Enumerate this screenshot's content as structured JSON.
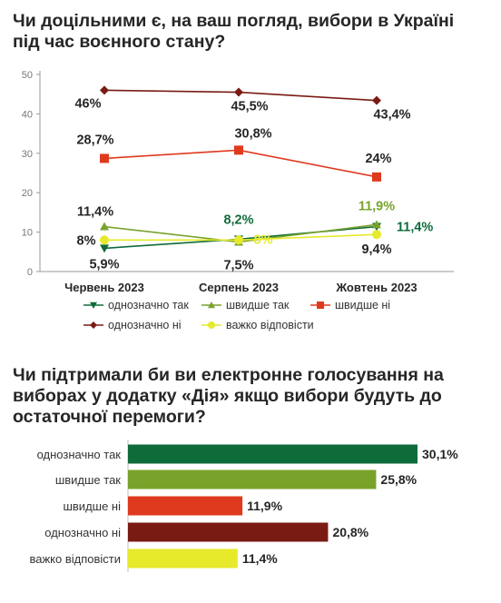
{
  "colors": {
    "definitely_yes": "#0e6b3a",
    "rather_yes": "#79a22b",
    "rather_no": "#df3a1e",
    "definitely_no": "#7a1b13",
    "hard_to_say": "#e6ea2a",
    "axis": "#9a9a9a",
    "grid": "#d9d9d9"
  },
  "titles": {
    "line_chart": "Чи доцільними є, на ваш погляд, вибори в Україні під час воєнного стану?",
    "bar_chart": "Чи підтримали би ви електронне голосування на виборах у додатку «Дія» якщо вибори будуть до остаточної перемоги?"
  },
  "chart_data": [
    {
      "type": "line",
      "title": "Чи доцільними є, на ваш погляд, вибори в Україні під час воєнного стану?",
      "categories": [
        "Червень 2023",
        "Серпень 2023",
        "Жовтень 2023"
      ],
      "ylim": [
        0,
        50
      ],
      "yticks": [
        0,
        10,
        20,
        30,
        40,
        50
      ],
      "grid": false,
      "legend": "bottom",
      "series": [
        {
          "name": "однозначно так",
          "key": "definitely_yes",
          "marker": "triangle-down",
          "values": [
            5.9,
            8.2,
            11.4
          ],
          "labels": [
            "5,9%",
            "8,2%",
            "11,4%"
          ]
        },
        {
          "name": "швидше так",
          "key": "rather_yes",
          "marker": "triangle-up",
          "values": [
            11.4,
            7.5,
            11.9
          ],
          "labels": [
            "11,4%",
            "7,5%",
            "11,9%"
          ]
        },
        {
          "name": "швидше ні",
          "key": "rather_no",
          "marker": "square",
          "values": [
            28.7,
            30.8,
            24.0
          ],
          "labels": [
            "28,7%",
            "30,8%",
            "24%"
          ]
        },
        {
          "name": "однозначно ні",
          "key": "definitely_no",
          "marker": "diamond",
          "values": [
            46.0,
            45.5,
            43.4
          ],
          "labels": [
            "46%",
            "45,5%",
            "43,4%"
          ]
        },
        {
          "name": "важко відповісти",
          "key": "hard_to_say",
          "marker": "circle",
          "values": [
            8.0,
            8.0,
            9.4
          ],
          "labels": [
            "8%",
            "8%",
            "9,4%"
          ]
        }
      ]
    },
    {
      "type": "bar",
      "orientation": "horizontal",
      "title": "Чи підтримали би ви електронне голосування на виборах у додатку «Дія» якщо вибори будуть до остаточної перемоги?",
      "categories": [
        "однозначно так",
        "швидше так",
        "швидше ні",
        "однозначно ні",
        "важко відповісти"
      ],
      "values": [
        30.1,
        25.8,
        11.9,
        20.8,
        11.4
      ],
      "labels": [
        "30,1%",
        "25,8%",
        "11,9%",
        "20,8%",
        "11,4%"
      ],
      "keys": [
        "definitely_yes",
        "rather_yes",
        "rather_no",
        "definitely_no",
        "hard_to_say"
      ],
      "grid": false
    }
  ]
}
